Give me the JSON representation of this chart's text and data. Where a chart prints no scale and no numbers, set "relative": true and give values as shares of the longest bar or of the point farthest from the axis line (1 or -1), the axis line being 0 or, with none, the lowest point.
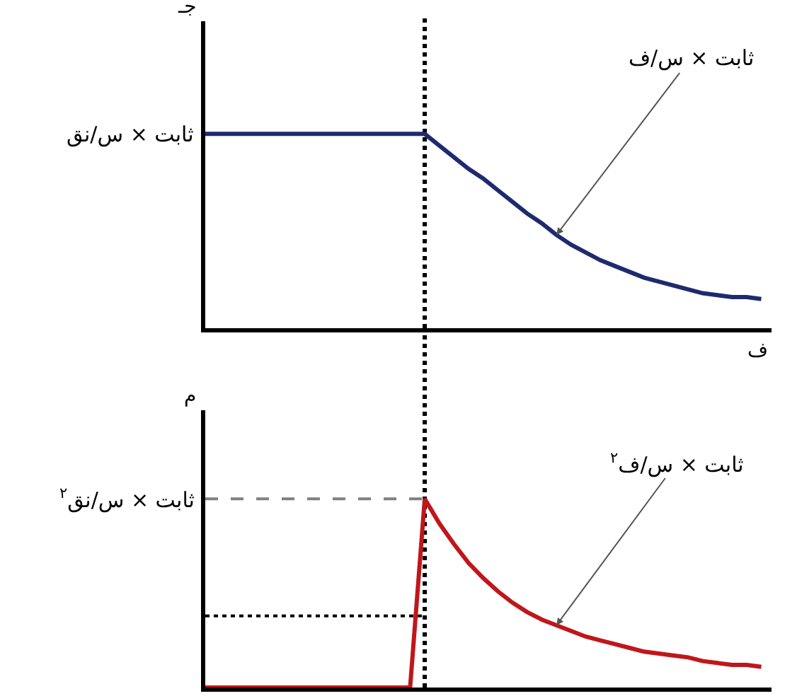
{
  "chart_data": [
    {
      "type": "line",
      "relative": true,
      "ylabel": "جـ",
      "xlabel": "ف",
      "categories": [
        null,
        null,
        null,
        null,
        null,
        null,
        null,
        null,
        null,
        null,
        null,
        null,
        null,
        null,
        null,
        null,
        null,
        null,
        null,
        null,
        null,
        null,
        null,
        null,
        null,
        null,
        null,
        null,
        null,
        null,
        null,
        null,
        null,
        null,
        null,
        null,
        null,
        null,
        null
      ],
      "series": [
        {
          "color": "#1f2a6e",
          "values": [
            1,
            1,
            1,
            1,
            1,
            1,
            1,
            1,
            1,
            1,
            1,
            1,
            1,
            1,
            1,
            1,
            0.94,
            0.88,
            0.82,
            0.77,
            0.71,
            0.65,
            0.59,
            0.54,
            0.48,
            0.43,
            0.39,
            0.35,
            0.32,
            0.29,
            0.26,
            0.24,
            0.22,
            0.2,
            0.18,
            0.17,
            0.16,
            0.16,
            0.15
          ]
        }
      ],
      "annotations": [
        "ثابت × س/نق",
        "ثابت × س/ف"
      ],
      "grid": false,
      "marker": "none",
      "line_style": "solid"
    },
    {
      "type": "line",
      "relative": true,
      "ylabel": "م",
      "categories": [
        null,
        null,
        null,
        null,
        null,
        null,
        null,
        null,
        null,
        null,
        null,
        null,
        null,
        null,
        null,
        null,
        null,
        null,
        null,
        null,
        null,
        null,
        null,
        null,
        null,
        null,
        null,
        null,
        null,
        null,
        null,
        null,
        null,
        null,
        null,
        null,
        null,
        null,
        null
      ],
      "series": [
        {
          "color": "#c0161b",
          "values": [
            0,
            0,
            0,
            0,
            0,
            0,
            0,
            0,
            0,
            0,
            0,
            0,
            0,
            0,
            0,
            1,
            0.87,
            0.76,
            0.66,
            0.58,
            0.51,
            0.45,
            0.4,
            0.36,
            0.33,
            0.3,
            0.27,
            0.25,
            0.23,
            0.21,
            0.19,
            0.18,
            0.17,
            0.16,
            0.14,
            0.13,
            0.12,
            0.12,
            0.11
          ]
        }
      ],
      "annotations": [
        "ثابت × س/نق$^{٢}$",
        "ثابت × س/ف$^{٢}$"
      ],
      "ref_lines": [
        {
          "axis": "y",
          "value": 1,
          "color": "#808080",
          "line_style": "dashed"
        },
        {
          "axis": "y",
          "value": 0.38,
          "color": "#000000",
          "line_style": "dotted"
        }
      ],
      "grid": false,
      "marker": "none",
      "line_style": "solid"
    }
  ]
}
